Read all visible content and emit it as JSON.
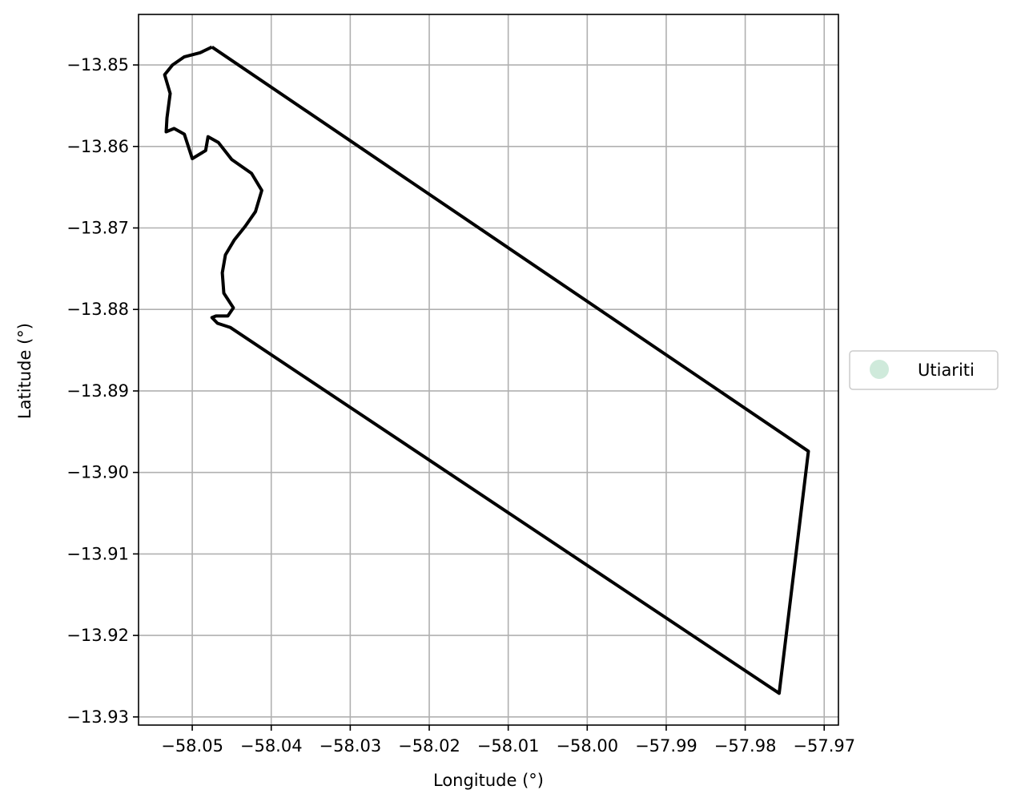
{
  "chart_data": {
    "type": "line",
    "xlabel": "Longitude (°)",
    "ylabel": "Latitude (°)",
    "xlim": [
      -58.0568,
      -57.9682
    ],
    "ylim": [
      -13.931,
      -13.8438
    ],
    "grid": true,
    "legend_placement": "center-right-outside",
    "x_ticks": [
      -58.05,
      -58.04,
      -58.03,
      -58.02,
      -58.01,
      -58.0,
      -57.99,
      -57.98,
      -57.97
    ],
    "x_tick_labels": [
      "−58.05",
      "−58.04",
      "−58.03",
      "−58.02",
      "−58.01",
      "−58.00",
      "−57.99",
      "−57.98",
      "−57.97"
    ],
    "y_ticks": [
      -13.85,
      -13.86,
      -13.87,
      -13.88,
      -13.89,
      -13.9,
      -13.91,
      -13.92,
      -13.93
    ],
    "y_tick_labels": [
      "−13.85",
      "−13.86",
      "−13.87",
      "−13.88",
      "−13.89",
      "−13.90",
      "−13.91",
      "−13.92",
      "−13.93"
    ],
    "series": [
      {
        "name": "Utiariti",
        "legend_color": "#cfeadb",
        "line_color": "#000000",
        "points": [
          [
            -58.0475,
            -13.8478
          ],
          [
            -58.049,
            -13.8485
          ],
          [
            -58.051,
            -13.849
          ],
          [
            -58.0525,
            -13.85
          ],
          [
            -58.0535,
            -13.8512
          ],
          [
            -58.0528,
            -13.8535
          ],
          [
            -58.0532,
            -13.8565
          ],
          [
            -58.0533,
            -13.8582
          ],
          [
            -58.0523,
            -13.8578
          ],
          [
            -58.051,
            -13.8585
          ],
          [
            -58.05,
            -13.8615
          ],
          [
            -58.0483,
            -13.8605
          ],
          [
            -58.048,
            -13.8588
          ],
          [
            -58.0467,
            -13.8595
          ],
          [
            -58.045,
            -13.8616
          ],
          [
            -58.0425,
            -13.8633
          ],
          [
            -58.0412,
            -13.8654
          ],
          [
            -58.042,
            -13.868
          ],
          [
            -58.0433,
            -13.8698
          ],
          [
            -58.0447,
            -13.8715
          ],
          [
            -58.0458,
            -13.8733
          ],
          [
            -58.0462,
            -13.8755
          ],
          [
            -58.046,
            -13.878
          ],
          [
            -58.0448,
            -13.8798
          ],
          [
            -58.0455,
            -13.8808
          ],
          [
            -58.047,
            -13.8808
          ],
          [
            -58.0475,
            -13.881
          ],
          [
            -58.0468,
            -13.8817
          ],
          [
            -58.0452,
            -13.8822
          ],
          [
            -57.9757,
            -13.9271
          ],
          [
            -57.972,
            -13.8974
          ],
          [
            -58.0475,
            -13.8478
          ]
        ]
      }
    ]
  }
}
